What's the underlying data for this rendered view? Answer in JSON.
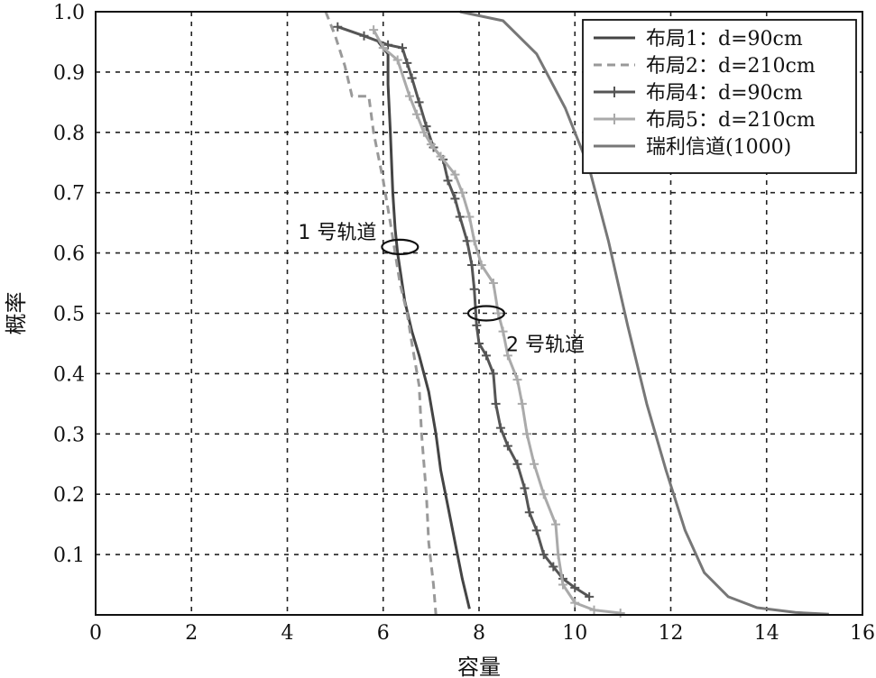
{
  "chart_data": {
    "type": "line",
    "xlabel": "容量",
    "ylabel": "概率",
    "xlim": [
      0,
      16
    ],
    "ylim": [
      0,
      1.0
    ],
    "xticks": [
      "0",
      "2",
      "4",
      "6",
      "8",
      "10",
      "12",
      "14",
      "16"
    ],
    "yticks": [
      "0.1",
      "0.2",
      "0.3",
      "0.4",
      "0.5",
      "0.6",
      "0.7",
      "0.8",
      "0.9",
      "1.0"
    ],
    "grid": true,
    "legend_position": "top-right",
    "series": [
      {
        "name": "布局1：d=90cm",
        "color": "#444444",
        "style": "solid",
        "marker": "none",
        "points": [
          [
            5.9,
            0.95
          ],
          [
            6.1,
            0.93
          ],
          [
            6.1,
            0.88
          ],
          [
            6.15,
            0.8
          ],
          [
            6.2,
            0.7
          ],
          [
            6.25,
            0.64
          ],
          [
            6.3,
            0.6
          ],
          [
            6.45,
            0.52
          ],
          [
            6.6,
            0.47
          ],
          [
            6.75,
            0.43
          ],
          [
            6.95,
            0.37
          ],
          [
            7.1,
            0.3
          ],
          [
            7.2,
            0.24
          ],
          [
            7.35,
            0.18
          ],
          [
            7.5,
            0.12
          ],
          [
            7.65,
            0.06
          ],
          [
            7.8,
            0.01
          ]
        ]
      },
      {
        "name": "布局2：d=210cm",
        "color": "#999999",
        "style": "dashed",
        "marker": "none",
        "points": [
          [
            4.8,
            1.0
          ],
          [
            5.0,
            0.96
          ],
          [
            5.2,
            0.91
          ],
          [
            5.35,
            0.86
          ],
          [
            5.7,
            0.86
          ],
          [
            5.8,
            0.8
          ],
          [
            5.9,
            0.76
          ],
          [
            6.0,
            0.72
          ],
          [
            6.15,
            0.65
          ],
          [
            6.35,
            0.55
          ],
          [
            6.5,
            0.5
          ],
          [
            6.6,
            0.45
          ],
          [
            6.75,
            0.38
          ],
          [
            6.8,
            0.3
          ],
          [
            6.9,
            0.2
          ],
          [
            6.95,
            0.12
          ],
          [
            7.05,
            0.05
          ],
          [
            7.1,
            0.0
          ]
        ]
      },
      {
        "name": "布局4：d=90cm",
        "color": "#555555",
        "style": "solid",
        "marker": "plus",
        "points": [
          [
            5.05,
            0.975
          ],
          [
            5.6,
            0.96
          ],
          [
            6.1,
            0.945
          ],
          [
            6.4,
            0.94
          ],
          [
            6.5,
            0.915
          ],
          [
            6.6,
            0.89
          ],
          [
            6.75,
            0.85
          ],
          [
            6.9,
            0.81
          ],
          [
            7.05,
            0.775
          ],
          [
            7.25,
            0.755
          ],
          [
            7.35,
            0.72
          ],
          [
            7.5,
            0.69
          ],
          [
            7.6,
            0.66
          ],
          [
            7.75,
            0.62
          ],
          [
            7.85,
            0.58
          ],
          [
            7.9,
            0.54
          ],
          [
            7.95,
            0.48
          ],
          [
            8.0,
            0.45
          ],
          [
            8.15,
            0.43
          ],
          [
            8.3,
            0.4
          ],
          [
            8.35,
            0.35
          ],
          [
            8.45,
            0.31
          ],
          [
            8.6,
            0.28
          ],
          [
            8.8,
            0.25
          ],
          [
            8.95,
            0.21
          ],
          [
            9.05,
            0.17
          ],
          [
            9.2,
            0.14
          ],
          [
            9.35,
            0.1
          ],
          [
            9.55,
            0.08
          ],
          [
            9.75,
            0.06
          ],
          [
            10.0,
            0.045
          ],
          [
            10.3,
            0.03
          ]
        ]
      },
      {
        "name": "布局5：d=210cm",
        "color": "#aaaaaa",
        "style": "solid",
        "marker": "plus",
        "points": [
          [
            5.8,
            0.97
          ],
          [
            6.0,
            0.94
          ],
          [
            6.3,
            0.92
          ],
          [
            6.55,
            0.86
          ],
          [
            6.7,
            0.83
          ],
          [
            6.85,
            0.8
          ],
          [
            7.0,
            0.78
          ],
          [
            7.2,
            0.76
          ],
          [
            7.5,
            0.73
          ],
          [
            7.65,
            0.7
          ],
          [
            7.8,
            0.66
          ],
          [
            7.9,
            0.62
          ],
          [
            8.05,
            0.58
          ],
          [
            8.3,
            0.55
          ],
          [
            8.4,
            0.5
          ],
          [
            8.5,
            0.47
          ],
          [
            8.6,
            0.43
          ],
          [
            8.8,
            0.39
          ],
          [
            8.9,
            0.35
          ],
          [
            9.0,
            0.3
          ],
          [
            9.15,
            0.25
          ],
          [
            9.35,
            0.2
          ],
          [
            9.6,
            0.15
          ],
          [
            9.65,
            0.1
          ],
          [
            9.75,
            0.05
          ],
          [
            10.0,
            0.02
          ],
          [
            10.4,
            0.008
          ],
          [
            10.95,
            0.003
          ]
        ]
      },
      {
        "name": "瑞利信道(1000)",
        "color": "#777777",
        "style": "solid",
        "marker": "none",
        "points": [
          [
            7.6,
            1.0
          ],
          [
            8.5,
            0.985
          ],
          [
            9.2,
            0.93
          ],
          [
            9.8,
            0.84
          ],
          [
            10.3,
            0.74
          ],
          [
            10.7,
            0.62
          ],
          [
            11.1,
            0.48
          ],
          [
            11.5,
            0.35
          ],
          [
            11.9,
            0.24
          ],
          [
            12.3,
            0.14
          ],
          [
            12.7,
            0.07
          ],
          [
            13.2,
            0.03
          ],
          [
            13.8,
            0.012
          ],
          [
            14.6,
            0.004
          ],
          [
            15.3,
            0.001
          ]
        ]
      }
    ],
    "annotations": [
      {
        "text": "1 号轨道",
        "ellipse_center": [
          6.35,
          0.61
        ]
      },
      {
        "text": "2 号轨道",
        "ellipse_center": [
          8.15,
          0.5
        ]
      }
    ]
  }
}
